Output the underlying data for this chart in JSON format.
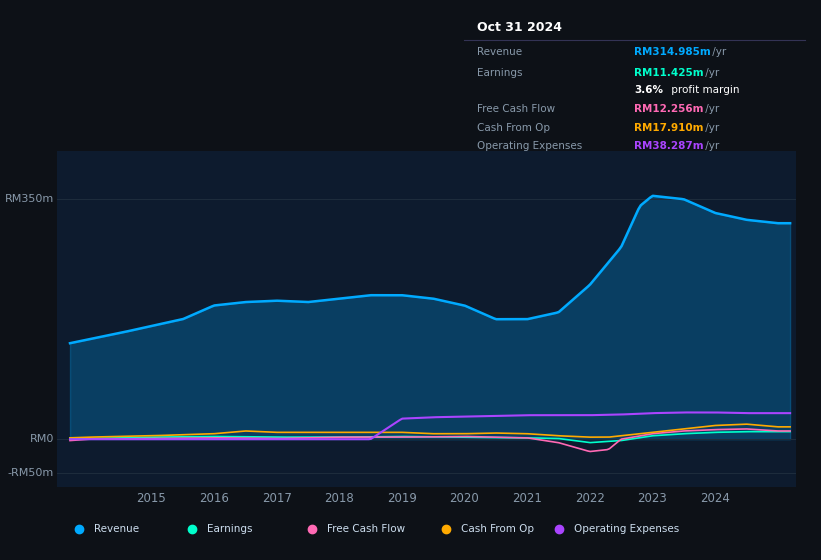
{
  "background_color": "#0d1117",
  "plot_bg_color": "#0d1b2e",
  "colors": {
    "revenue": "#00aaff",
    "earnings": "#00ffcc",
    "free_cash_flow": "#ff69b4",
    "cash_from_op": "#ffaa00",
    "operating_expenses": "#aa44ff"
  },
  "info_box": {
    "title": "Oct 31 2024",
    "revenue": "RM314.985m /yr",
    "earnings": "RM11.425m /yr",
    "profit_margin": "3.6% profit margin",
    "free_cash_flow": "RM12.256m /yr",
    "cash_from_op": "RM17.910m /yr",
    "operating_expenses": "RM38.287m /yr"
  },
  "legend": [
    "Revenue",
    "Earnings",
    "Free Cash Flow",
    "Cash From Op",
    "Operating Expenses"
  ],
  "ylim": [
    -70,
    420
  ],
  "xlim": [
    2013.5,
    2025.3
  ],
  "ylabel_top": "RM350m",
  "ylabel_zero": "RM0",
  "ylabel_neg": "-RM50m",
  "yticks": [
    350,
    0,
    -50
  ],
  "xticks": [
    2015,
    2016,
    2017,
    2018,
    2019,
    2020,
    2021,
    2022,
    2023,
    2024
  ]
}
